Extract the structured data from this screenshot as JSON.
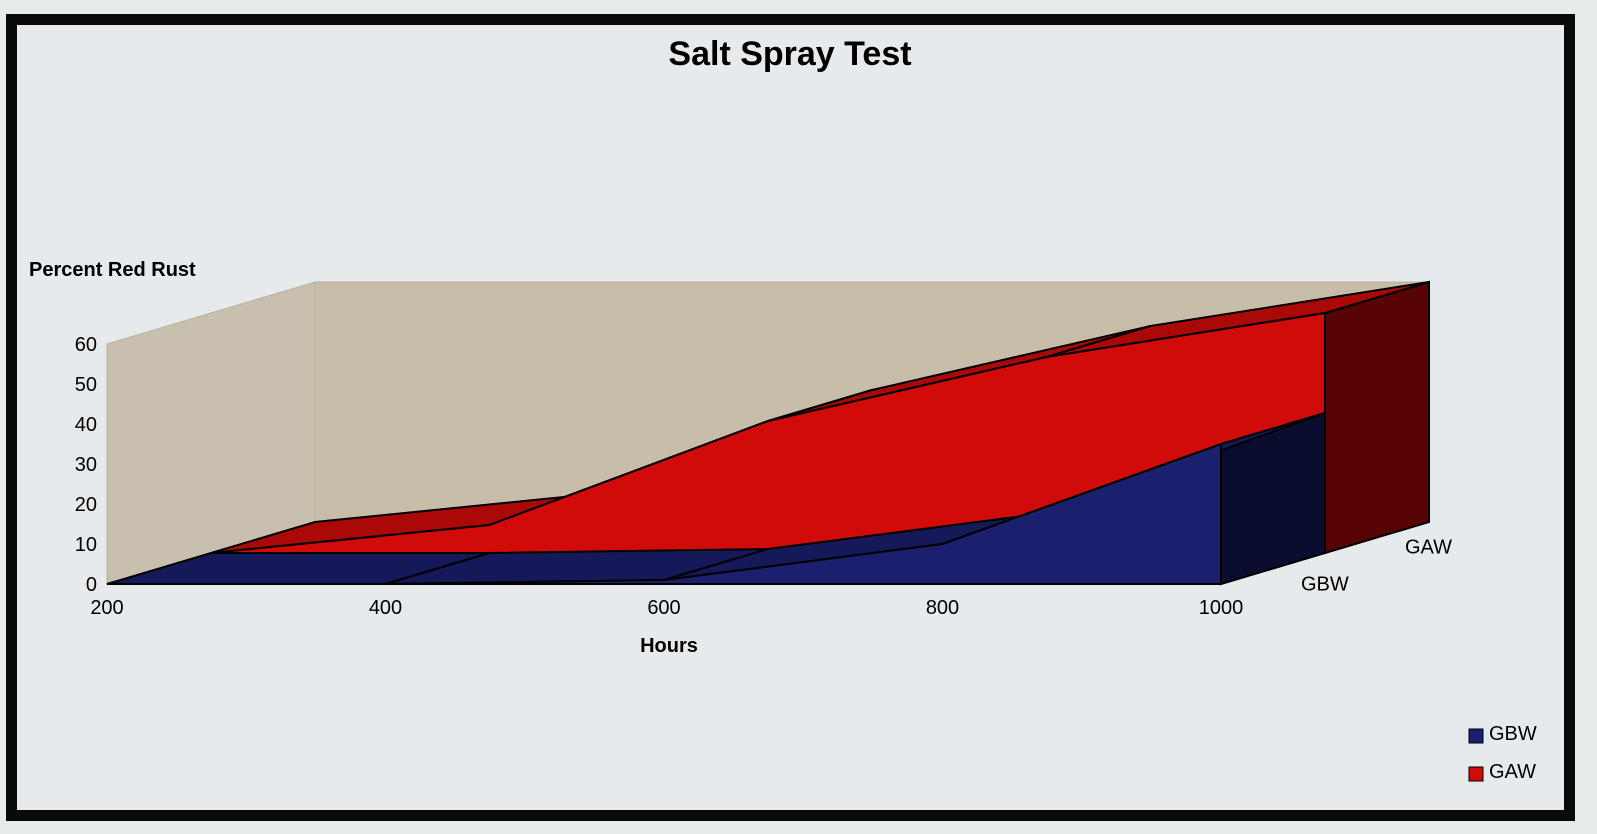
{
  "chart_data": {
    "type": "area",
    "title": "Salt Spray Test",
    "ylabel": "Percent Red Rust",
    "xlabel": "Hours",
    "categories": [
      "200",
      "400",
      "600",
      "800",
      "1000"
    ],
    "ylim": [
      0,
      60
    ],
    "yticks": [
      "0",
      "10",
      "20",
      "30",
      "40",
      "50",
      "60"
    ],
    "series": [
      {
        "name": "GBW",
        "values": [
          0,
          0,
          1,
          10,
          35
        ],
        "color": "#1a1f6e"
      },
      {
        "name": "GAW",
        "values": [
          0,
          7,
          33,
          49,
          60
        ],
        "color": "#d10a0a"
      }
    ],
    "grid": false,
    "legend_position": "bottom-right"
  }
}
